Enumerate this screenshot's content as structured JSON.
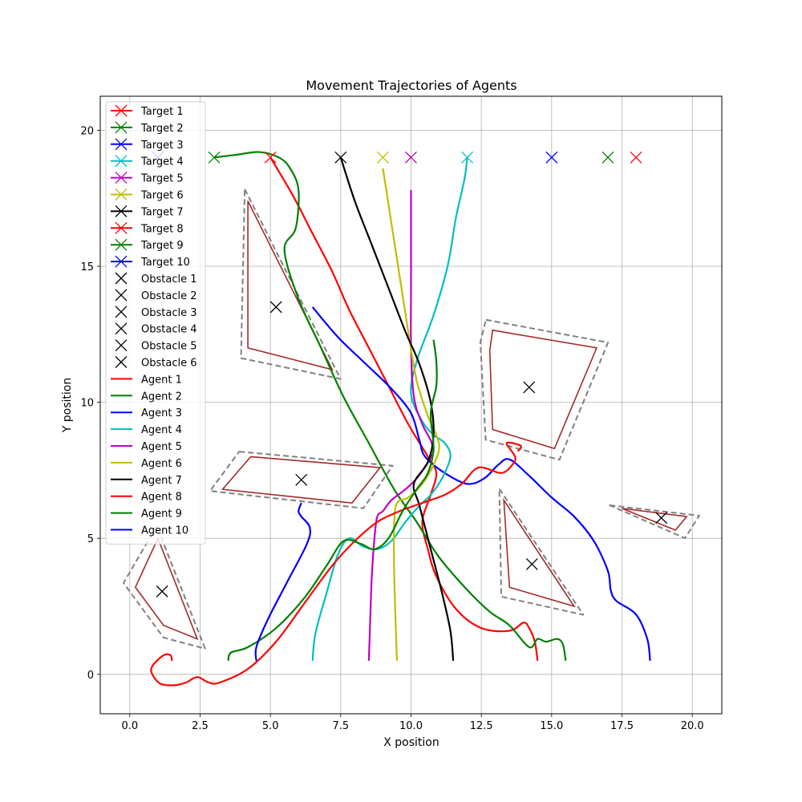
{
  "chart_data": {
    "type": "line",
    "title": "Movement Trajectories of Agents",
    "xlabel": "X position",
    "ylabel": "Y position",
    "xlim": [
      -1.05,
      21.05
    ],
    "ylim": [
      -1.45,
      21.25
    ],
    "xticks": [
      0,
      2.5,
      5,
      7.5,
      10,
      12.5,
      15,
      17.5,
      20
    ],
    "xtick_labels": [
      "0.0",
      "2.5",
      "5.0",
      "7.5",
      "10.0",
      "12.5",
      "15.0",
      "17.5",
      "20.0"
    ],
    "yticks": [
      0,
      5,
      10,
      15,
      20
    ],
    "ytick_labels": [
      "0",
      "5",
      "10",
      "15",
      "20"
    ],
    "grid": true,
    "legend_position": "upper-left",
    "targets": [
      {
        "name": "Target 1",
        "color": "#ff0000",
        "x": 18,
        "y": 19
      },
      {
        "name": "Target 2",
        "color": "#008000",
        "x": 17,
        "y": 19
      },
      {
        "name": "Target 3",
        "color": "#0000ff",
        "x": 15,
        "y": 19
      },
      {
        "name": "Target 4",
        "color": "#00bfbf",
        "x": 12,
        "y": 19
      },
      {
        "name": "Target 5",
        "color": "#bf00bf",
        "x": 10,
        "y": 19
      },
      {
        "name": "Target 6",
        "color": "#bfbf00",
        "x": 9,
        "y": 19
      },
      {
        "name": "Target 7",
        "color": "#000000",
        "x": 7.5,
        "y": 19
      },
      {
        "name": "Target 8",
        "color": "#ff0000",
        "x": 5,
        "y": 19
      },
      {
        "name": "Target 9",
        "color": "#008000",
        "x": 3,
        "y": 19
      },
      {
        "name": "Target 10",
        "color": "#0000ff",
        "x": 1,
        "y": 19
      }
    ],
    "obstacles": [
      {
        "name": "Obstacle 1",
        "center": [
          5.2,
          13.5
        ],
        "polygon": [
          [
            4.2,
            17.4
          ],
          [
            7.2,
            11.2
          ],
          [
            4.2,
            12.0
          ]
        ]
      },
      {
        "name": "Obstacle 2",
        "center": [
          14.2,
          10.55
        ],
        "polygon": [
          [
            12.9,
            12.65
          ],
          [
            16.6,
            12.0
          ],
          [
            15.1,
            8.3
          ],
          [
            12.9,
            9.0
          ],
          [
            12.8,
            11.9
          ]
        ]
      },
      {
        "name": "Obstacle 3",
        "center": [
          6.1,
          7.15
        ],
        "polygon": [
          [
            4.3,
            8.0
          ],
          [
            8.9,
            7.6
          ],
          [
            7.9,
            6.3
          ],
          [
            3.3,
            6.8
          ]
        ]
      },
      {
        "name": "Obstacle 4",
        "center": [
          1.15,
          3.05
        ],
        "polygon": [
          [
            1.0,
            5.0
          ],
          [
            0.2,
            3.2
          ],
          [
            1.2,
            1.8
          ],
          [
            2.4,
            1.3
          ]
        ]
      },
      {
        "name": "Obstacle 5",
        "center": [
          14.3,
          4.05
        ],
        "polygon": [
          [
            13.3,
            6.4
          ],
          [
            15.8,
            2.5
          ],
          [
            13.5,
            3.2
          ]
        ]
      },
      {
        "name": "Obstacle 6",
        "center": [
          18.9,
          5.75
        ],
        "polygon": [
          [
            17.5,
            6.1
          ],
          [
            19.8,
            5.8
          ],
          [
            19.4,
            5.3
          ]
        ]
      }
    ],
    "series": [
      {
        "name": "Agent 1",
        "color": "#ff0000",
        "x": [
          14.5,
          14.4,
          14.2,
          14.0,
          13.5,
          12.5,
          11.6,
          10.9,
          10.6,
          10.4,
          10.7,
          10.9,
          10.6,
          9.9,
          9.2,
          8.5,
          7.8,
          7.2,
          6.5,
          5.8,
          5.0
        ],
        "y": [
          0.5,
          1.2,
          1.7,
          1.9,
          1.6,
          1.7,
          2.4,
          3.6,
          4.6,
          5.6,
          6.6,
          7.4,
          8.0,
          9.2,
          10.6,
          12.0,
          13.4,
          14.8,
          16.2,
          17.6,
          19.0
        ]
      },
      {
        "name": "Agent 2",
        "color": "#008000",
        "x": [
          15.5,
          15.4,
          15.2,
          14.8,
          14.5,
          14.2,
          13.5,
          12.8,
          12.0,
          11.0,
          10.2,
          9.4,
          8.5,
          7.6,
          6.8,
          6.0,
          5.5,
          5.9,
          6.0,
          5.7,
          5.3,
          4.6,
          3.8,
          3.0
        ],
        "y": [
          0.5,
          1.1,
          1.3,
          1.2,
          1.3,
          1.0,
          1.8,
          2.3,
          3.1,
          4.3,
          5.6,
          6.8,
          8.5,
          10.2,
          12.0,
          13.8,
          15.6,
          16.4,
          17.8,
          18.6,
          19.0,
          19.2,
          19.1,
          19.0
        ]
      },
      {
        "name": "Agent 3",
        "color": "#0000ff",
        "x": [
          18.5,
          18.4,
          18.0,
          17.3,
          17.1,
          17.0,
          16.5,
          15.8,
          15.0,
          14.2,
          13.5,
          13.1,
          12.6,
          12.0,
          11.2,
          10.5,
          10.3,
          10.0,
          9.3,
          8.4,
          7.4,
          6.5
        ],
        "y": [
          0.5,
          1.3,
          2.2,
          2.7,
          3.1,
          3.8,
          4.9,
          5.8,
          6.5,
          7.3,
          7.9,
          7.7,
          7.2,
          7.0,
          7.4,
          8.0,
          8.6,
          9.6,
          10.5,
          11.4,
          12.4,
          13.5
        ]
      },
      {
        "name": "Agent 4",
        "color": "#00bfbf",
        "x": [
          6.5,
          6.6,
          7.0,
          7.4,
          7.8,
          8.3,
          8.8,
          9.3,
          9.8,
          10.3,
          10.7,
          11.1,
          11.4,
          11.2,
          10.8,
          10.4,
          10.0,
          10.2,
          10.8,
          11.3,
          11.6,
          11.9,
          12.0
        ],
        "y": [
          0.5,
          1.5,
          3.0,
          4.4,
          5.0,
          4.7,
          4.6,
          4.9,
          5.6,
          6.2,
          6.6,
          7.2,
          8.0,
          8.5,
          8.8,
          9.3,
          10.3,
          11.5,
          13.2,
          15.0,
          16.8,
          18.2,
          19.0
        ]
      },
      {
        "name": "Agent 5",
        "color": "#bf00bf",
        "x": [
          8.5,
          8.55,
          8.6,
          8.7,
          8.8,
          9.0,
          9.3,
          9.8,
          10.2,
          10.6,
          10.8,
          10.7,
          10.4,
          10.1,
          10.0,
          10.0,
          10.0
        ],
        "y": [
          0.5,
          2.0,
          3.5,
          5.0,
          5.8,
          6.0,
          6.4,
          6.8,
          7.2,
          7.8,
          8.2,
          8.6,
          9.2,
          10.2,
          12.0,
          14.5,
          17.8
        ]
      },
      {
        "name": "Agent 6",
        "color": "#bfbf00",
        "x": [
          9.5,
          9.45,
          9.4,
          9.4,
          9.5,
          9.9,
          10.4,
          10.8,
          11.0,
          10.9,
          10.6,
          10.2,
          9.9,
          9.6,
          9.3,
          9.0
        ],
        "y": [
          0.5,
          2.0,
          3.8,
          5.5,
          6.3,
          6.5,
          7.0,
          7.7,
          8.3,
          8.8,
          9.5,
          10.8,
          12.6,
          14.6,
          16.6,
          18.6
        ]
      },
      {
        "name": "Agent 7",
        "color": "#000000",
        "x": [
          11.5,
          11.4,
          11.1,
          10.7,
          10.3,
          10.1,
          10.6,
          10.8,
          10.7,
          10.3,
          9.8,
          9.2,
          8.6,
          8.0,
          7.5
        ],
        "y": [
          0.5,
          1.6,
          3.0,
          4.6,
          6.2,
          7.0,
          7.8,
          8.8,
          10.0,
          11.4,
          12.6,
          14.2,
          15.8,
          17.4,
          19.0
        ]
      },
      {
        "name": "Agent 8",
        "color": "#ff0000",
        "x": [
          1.5,
          1.45,
          1.2,
          0.8,
          0.8,
          1.1,
          1.6,
          2.0,
          2.4,
          2.8,
          3.2,
          4.2,
          5.2,
          6.2,
          7.2,
          8.0,
          8.8,
          9.6,
          10.4,
          11.2,
          11.8,
          12.4,
          13.2,
          13.6,
          13.7,
          13.4,
          13.9,
          13.8
        ],
        "y": [
          0.5,
          0.7,
          0.7,
          0.3,
          0.0,
          -0.35,
          -0.4,
          -0.3,
          -0.1,
          -0.3,
          -0.3,
          0.2,
          1.2,
          2.6,
          4.0,
          4.9,
          5.6,
          6.0,
          6.3,
          6.6,
          7.0,
          7.6,
          7.4,
          7.7,
          8.0,
          8.5,
          8.4,
          8.2
        ]
      },
      {
        "name": "Agent 9",
        "color": "#008000",
        "x": [
          3.5,
          3.6,
          4.2,
          5.2,
          6.2,
          7.0,
          7.6,
          8.2,
          8.7,
          9.2,
          9.7,
          10.2,
          10.6,
          10.8,
          10.7,
          10.9,
          10.9,
          10.8
        ],
        "y": [
          0.5,
          0.8,
          1.0,
          1.7,
          2.8,
          4.0,
          4.9,
          4.8,
          4.6,
          5.0,
          6.0,
          6.8,
          7.4,
          8.3,
          9.6,
          10.6,
          11.5,
          12.3
        ]
      },
      {
        "name": "Agent 10",
        "color": "#0000ff",
        "x": [
          4.5,
          4.5,
          4.9,
          5.6,
          6.3,
          6.4,
          6.1,
          6.0,
          6.1
        ],
        "y": [
          0.5,
          1.0,
          2.0,
          3.4,
          4.8,
          5.4,
          5.8,
          6.0,
          6.3
        ]
      }
    ]
  }
}
